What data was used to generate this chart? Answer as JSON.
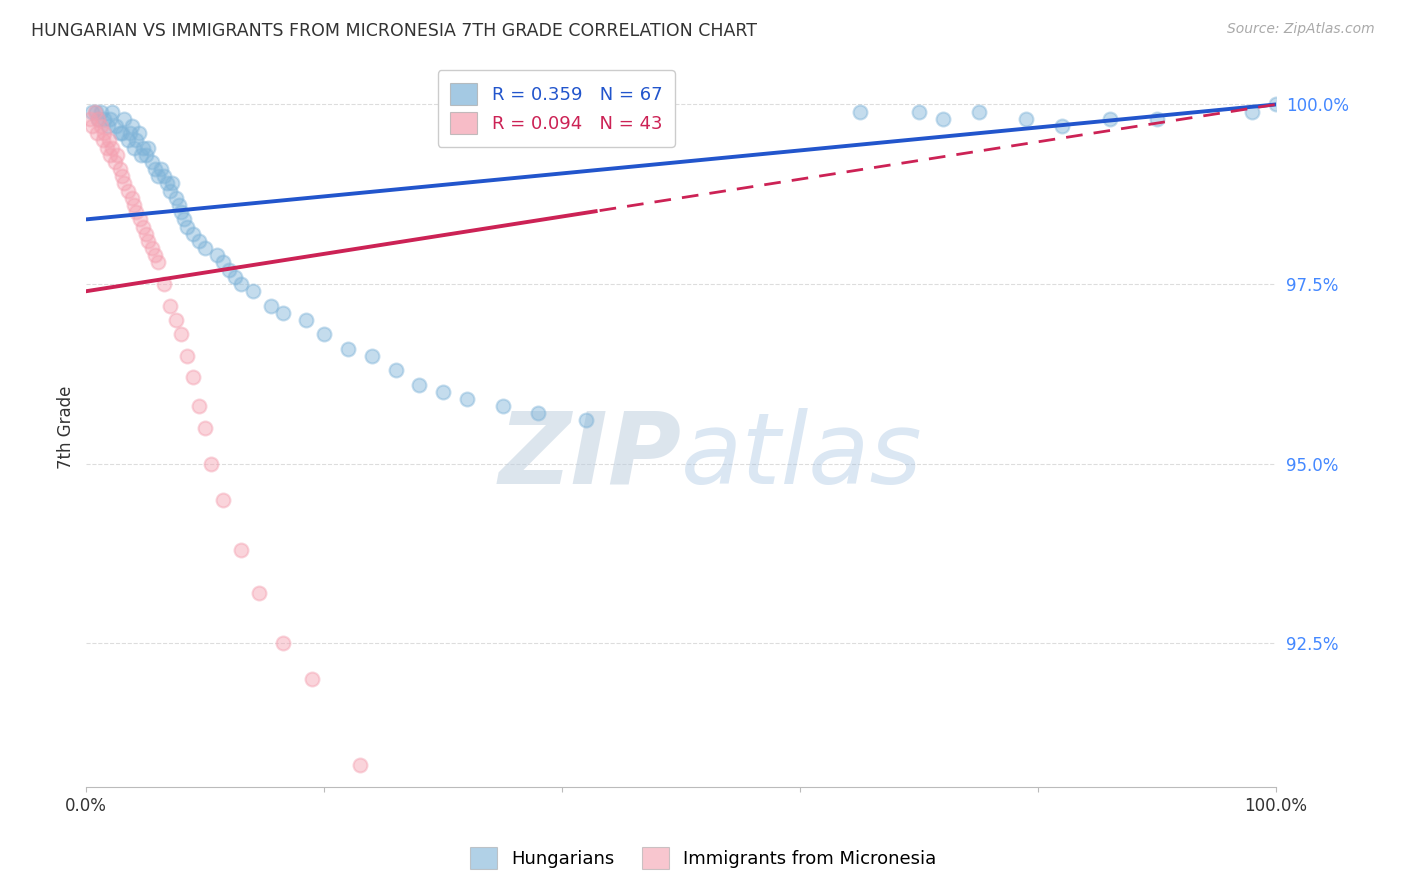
{
  "title": "HUNGARIAN VS IMMIGRANTS FROM MICRONESIA 7TH GRADE CORRELATION CHART",
  "source": "Source: ZipAtlas.com",
  "ylabel": "7th Grade",
  "xlim": [
    0.0,
    1.0
  ],
  "ylim": [
    0.905,
    1.005
  ],
  "yticks": [
    0.925,
    0.95,
    0.975,
    1.0
  ],
  "ytick_labels": [
    "92.5%",
    "95.0%",
    "97.5%",
    "100.0%"
  ],
  "xticks": [
    0.0,
    0.2,
    0.4,
    0.6,
    0.8,
    1.0
  ],
  "xtick_labels": [
    "0.0%",
    "",
    "",
    "",
    "",
    "100.0%"
  ],
  "blue_color": "#7EB3D8",
  "pink_color": "#F4A0B0",
  "trend_blue": "#2255CC",
  "trend_pink": "#CC2255",
  "legend_R_blue": "R = 0.359",
  "legend_N_blue": "N = 67",
  "legend_R_pink": "R = 0.094",
  "legend_N_pink": "N = 43",
  "blue_intercept": 0.984,
  "blue_slope": 0.016,
  "pink_intercept": 0.974,
  "pink_slope": 0.026,
  "blue_points_x": [
    0.005,
    0.008,
    0.01,
    0.012,
    0.015,
    0.018,
    0.02,
    0.022,
    0.025,
    0.028,
    0.03,
    0.032,
    0.035,
    0.037,
    0.038,
    0.04,
    0.042,
    0.044,
    0.046,
    0.048,
    0.05,
    0.052,
    0.055,
    0.058,
    0.06,
    0.063,
    0.065,
    0.068,
    0.07,
    0.072,
    0.075,
    0.078,
    0.08,
    0.082,
    0.085,
    0.09,
    0.095,
    0.1,
    0.11,
    0.115,
    0.12,
    0.125,
    0.13,
    0.14,
    0.155,
    0.165,
    0.185,
    0.2,
    0.22,
    0.24,
    0.26,
    0.28,
    0.3,
    0.32,
    0.35,
    0.38,
    0.42,
    0.65,
    0.7,
    0.72,
    0.75,
    0.79,
    0.82,
    0.86,
    0.9,
    0.98,
    1.0
  ],
  "blue_points_y": [
    0.999,
    0.999,
    0.998,
    0.999,
    0.998,
    0.997,
    0.998,
    0.999,
    0.997,
    0.996,
    0.996,
    0.998,
    0.995,
    0.996,
    0.997,
    0.994,
    0.995,
    0.996,
    0.993,
    0.994,
    0.993,
    0.994,
    0.992,
    0.991,
    0.99,
    0.991,
    0.99,
    0.989,
    0.988,
    0.989,
    0.987,
    0.986,
    0.985,
    0.984,
    0.983,
    0.982,
    0.981,
    0.98,
    0.979,
    0.978,
    0.977,
    0.976,
    0.975,
    0.974,
    0.972,
    0.971,
    0.97,
    0.968,
    0.966,
    0.965,
    0.963,
    0.961,
    0.96,
    0.959,
    0.958,
    0.957,
    0.956,
    0.999,
    0.999,
    0.998,
    0.999,
    0.998,
    0.997,
    0.998,
    0.998,
    0.999,
    1.0
  ],
  "pink_points_x": [
    0.003,
    0.005,
    0.007,
    0.009,
    0.01,
    0.012,
    0.014,
    0.015,
    0.017,
    0.019,
    0.02,
    0.022,
    0.024,
    0.026,
    0.028,
    0.03,
    0.032,
    0.035,
    0.038,
    0.04,
    0.042,
    0.045,
    0.048,
    0.05,
    0.052,
    0.055,
    0.058,
    0.06,
    0.065,
    0.07,
    0.075,
    0.08,
    0.085,
    0.09,
    0.095,
    0.1,
    0.105,
    0.115,
    0.13,
    0.145,
    0.165,
    0.19,
    0.23
  ],
  "pink_points_y": [
    0.998,
    0.997,
    0.999,
    0.996,
    0.998,
    0.997,
    0.995,
    0.996,
    0.994,
    0.995,
    0.993,
    0.994,
    0.992,
    0.993,
    0.991,
    0.99,
    0.989,
    0.988,
    0.987,
    0.986,
    0.985,
    0.984,
    0.983,
    0.982,
    0.981,
    0.98,
    0.979,
    0.978,
    0.975,
    0.972,
    0.97,
    0.968,
    0.965,
    0.962,
    0.958,
    0.955,
    0.95,
    0.945,
    0.938,
    0.932,
    0.925,
    0.92,
    0.908
  ],
  "watermark_zip": "ZIP",
  "watermark_atlas": "atlas",
  "marker_size": 100,
  "alpha": 0.45,
  "grid_color": "#DDDDDD",
  "background_color": "#FFFFFF"
}
